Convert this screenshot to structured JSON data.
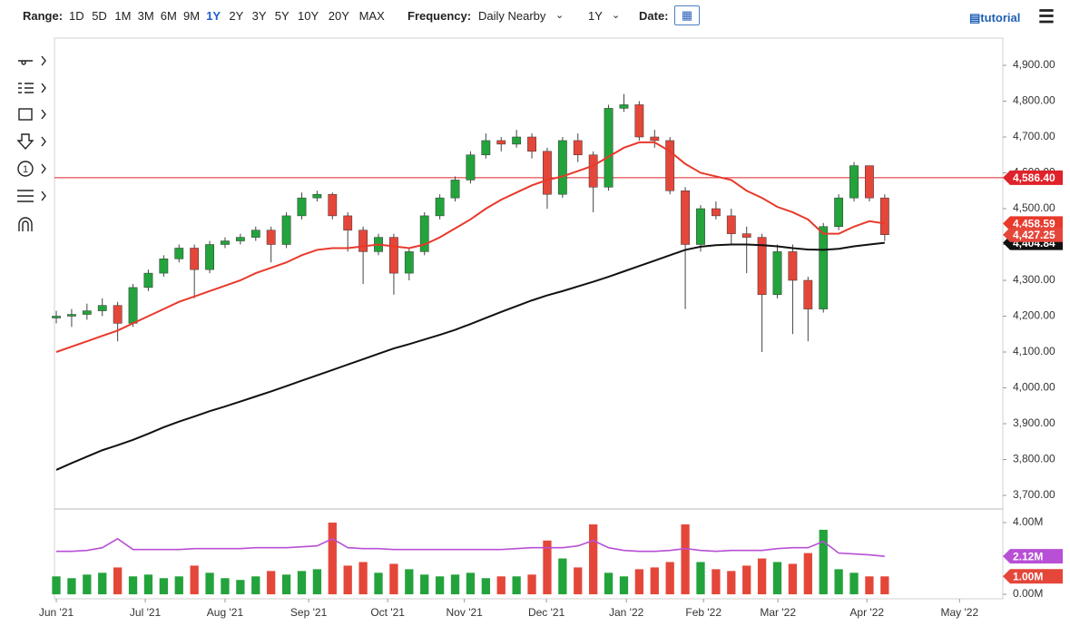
{
  "toolbar": {
    "range_label": "Range:",
    "ranges": [
      "1D",
      "5D",
      "1M",
      "3M",
      "6M",
      "9M",
      "1Y",
      "2Y",
      "3Y",
      "5Y",
      "10Y",
      "20Y",
      "MAX"
    ],
    "selected_range": "1Y",
    "frequency_label": "Frequency:",
    "frequency": "Daily Nearby",
    "period": "1Y",
    "date_label": "Date:",
    "tutorial": "tutorial"
  },
  "chart_data": {
    "type": "candlestick",
    "xlim": [
      -0.12,
      61.7
    ],
    "xticks": [
      {
        "value": 0,
        "label": "Jun '21"
      },
      {
        "value": 5.8,
        "label": "Jul '21"
      },
      {
        "value": 11.0,
        "label": "Aug '21"
      },
      {
        "value": 16.45,
        "label": "Sep '21"
      },
      {
        "value": 21.6,
        "label": "Oct '21"
      },
      {
        "value": 26.6,
        "label": "Nov '21"
      },
      {
        "value": 31.95,
        "label": "Dec '21"
      },
      {
        "value": 37.16,
        "label": "Jan '22"
      },
      {
        "value": 42.19,
        "label": "Feb '22"
      },
      {
        "value": 47.04,
        "label": "Mar '22"
      },
      {
        "value": 52.84,
        "label": "Apr '22"
      },
      {
        "value": 58.88,
        "label": "May '22"
      }
    ],
    "ylim": [
      3664.6,
      4975.9
    ],
    "yticks": [
      {
        "value": 3700,
        "label": "3,700.00"
      },
      {
        "value": 3800,
        "label": "3,800.00"
      },
      {
        "value": 3900,
        "label": "3,900.00"
      },
      {
        "value": 4000,
        "label": "4,000.00"
      },
      {
        "value": 4100,
        "label": "4,100.00"
      },
      {
        "value": 4200,
        "label": "4,200.00"
      },
      {
        "value": 4300,
        "label": "4,300.00"
      },
      {
        "value": 4400,
        "label": "4,400.00"
      },
      {
        "value": 4500,
        "label": "4,500.00"
      },
      {
        "value": 4600,
        "label": "4,600.00"
      },
      {
        "value": 4700,
        "label": "4,700.00"
      },
      {
        "value": 4800,
        "label": "4,800.00"
      },
      {
        "value": 4900,
        "label": "4,900.00"
      }
    ],
    "up_color": "#23a33b",
    "down_color": "#e4473a",
    "open": [
      4195,
      4200,
      4205,
      4215,
      4230,
      4180,
      4280,
      4320,
      4360,
      4390,
      4330,
      4400,
      4410,
      4420,
      4440,
      4400,
      4480,
      4530,
      4540,
      4480,
      4440,
      4380,
      4420,
      4320,
      4380,
      4480,
      4530,
      4580,
      4650,
      4690,
      4680,
      4700,
      4660,
      4540,
      4690,
      4650,
      4560,
      4780,
      4790,
      4700,
      4690,
      4550,
      4400,
      4500,
      4480,
      4430,
      4420,
      4260,
      4380,
      4300,
      4220,
      4450,
      4530,
      4620,
      4530
    ],
    "high": [
      4215,
      4220,
      4235,
      4250,
      4240,
      4290,
      4330,
      4370,
      4400,
      4400,
      4410,
      4420,
      4430,
      4450,
      4450,
      4490,
      4545,
      4550,
      4545,
      4490,
      4450,
      4430,
      4430,
      4390,
      4490,
      4540,
      4590,
      4660,
      4710,
      4700,
      4720,
      4710,
      4670,
      4700,
      4710,
      4660,
      4790,
      4820,
      4800,
      4720,
      4700,
      4560,
      4510,
      4520,
      4500,
      4450,
      4430,
      4400,
      4400,
      4310,
      4460,
      4540,
      4630,
      4620,
      4540
    ],
    "low": [
      4180,
      4170,
      4190,
      4200,
      4130,
      4170,
      4270,
      4310,
      4350,
      4250,
      4320,
      4390,
      4400,
      4410,
      4350,
      4390,
      4470,
      4520,
      4470,
      4380,
      4290,
      4370,
      4260,
      4300,
      4370,
      4470,
      4520,
      4570,
      4640,
      4660,
      4670,
      4640,
      4500,
      4530,
      4630,
      4490,
      4550,
      4770,
      4690,
      4670,
      4540,
      4220,
      4380,
      4470,
      4400,
      4320,
      4100,
      4250,
      4150,
      4130,
      4210,
      4440,
      4520,
      4520,
      4410
    ],
    "close": [
      4200,
      4205,
      4215,
      4230,
      4180,
      4280,
      4320,
      4360,
      4390,
      4330,
      4400,
      4410,
      4420,
      4440,
      4400,
      4480,
      4530,
      4540,
      4480,
      4440,
      4380,
      4420,
      4320,
      4380,
      4480,
      4530,
      4580,
      4650,
      4690,
      4680,
      4700,
      4660,
      4540,
      4690,
      4650,
      4560,
      4780,
      4790,
      4700,
      4690,
      4550,
      4400,
      4500,
      4480,
      4430,
      4420,
      4260,
      4380,
      4300,
      4220,
      4450,
      4530,
      4620,
      4530,
      4427.25
    ],
    "last_close_label": "4,427.25",
    "ma50": {
      "color": "#e8392b",
      "values": [
        4100,
        4115,
        4130,
        4145,
        4160,
        4180,
        4200,
        4220,
        4240,
        4255,
        4270,
        4285,
        4300,
        4320,
        4335,
        4350,
        4370,
        4385,
        4390,
        4390,
        4395,
        4400,
        4395,
        4390,
        4400,
        4420,
        4445,
        4470,
        4500,
        4525,
        4545,
        4565,
        4580,
        4590,
        4605,
        4620,
        4645,
        4670,
        4685,
        4685,
        4660,
        4625,
        4600,
        4590,
        4580,
        4550,
        4530,
        4505,
        4490,
        4470,
        4430,
        4430,
        4450,
        4465,
        4458.59
      ],
      "last_label": "4,458.59"
    },
    "ma200": {
      "color": "#111111",
      "values": [
        3771,
        3790,
        3808,
        3826,
        3840,
        3855,
        3872,
        3890,
        3906,
        3920,
        3935,
        3948,
        3962,
        3976,
        3990,
        4005,
        4020,
        4035,
        4050,
        4065,
        4080,
        4095,
        4110,
        4122,
        4135,
        4148,
        4162,
        4178,
        4195,
        4212,
        4228,
        4244,
        4258,
        4270,
        4283,
        4296,
        4310,
        4325,
        4340,
        4355,
        4370,
        4385,
        4394,
        4398,
        4400,
        4400,
        4398,
        4395,
        4390,
        4386,
        4385,
        4388,
        4395,
        4400,
        4404.84
      ],
      "last_label": "4,404.84"
    },
    "hline": {
      "value": 4586.4,
      "label": "4,586.40",
      "color": "#e0222b"
    },
    "volume": {
      "ylim": [
        -0.25,
        4.71
      ],
      "yticks": [
        {
          "value": 0,
          "label": "0.00M"
        },
        {
          "value": 4,
          "label": "4.00M"
        }
      ],
      "values": [
        1.0,
        0.9,
        1.1,
        1.2,
        1.5,
        1.0,
        1.1,
        0.9,
        1.0,
        1.6,
        1.2,
        0.9,
        0.8,
        1.0,
        1.3,
        1.1,
        1.3,
        1.4,
        4.0,
        1.6,
        1.8,
        1.2,
        1.7,
        1.4,
        1.1,
        1.0,
        1.1,
        1.2,
        0.9,
        1.0,
        1.0,
        1.1,
        3.0,
        2.0,
        1.5,
        3.9,
        1.2,
        1.0,
        1.4,
        1.5,
        1.8,
        3.9,
        1.8,
        1.4,
        1.3,
        1.6,
        2.0,
        1.8,
        1.7,
        2.3,
        3.6,
        1.4,
        1.2,
        1.0,
        1.0
      ],
      "last_label": "1.00M",
      "avg": {
        "color": "#b84fd6",
        "values": [
          2.4,
          2.4,
          2.45,
          2.6,
          3.1,
          2.5,
          2.5,
          2.5,
          2.5,
          2.55,
          2.55,
          2.55,
          2.55,
          2.6,
          2.6,
          2.6,
          2.65,
          2.7,
          3.1,
          2.6,
          2.55,
          2.55,
          2.5,
          2.5,
          2.5,
          2.5,
          2.5,
          2.5,
          2.5,
          2.5,
          2.55,
          2.6,
          2.6,
          2.6,
          2.7,
          3.0,
          2.6,
          2.45,
          2.4,
          2.4,
          2.45,
          2.55,
          2.45,
          2.4,
          2.45,
          2.45,
          2.45,
          2.55,
          2.6,
          2.6,
          2.95,
          2.3,
          2.25,
          2.2,
          2.12
        ],
        "last_label": "2.12M"
      }
    }
  }
}
